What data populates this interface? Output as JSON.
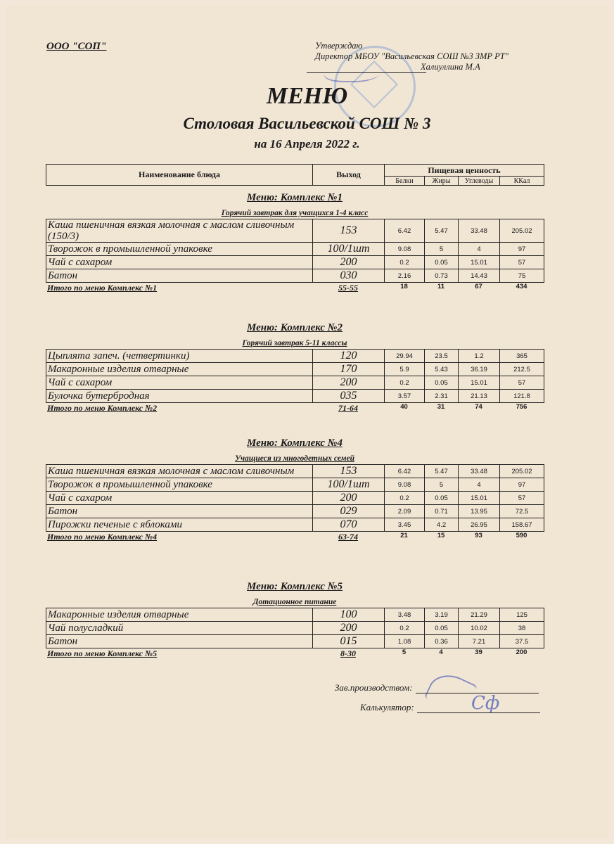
{
  "header": {
    "org": "ООО \"СОП\"",
    "approve_label": "Утверждаю",
    "approve_position": "Директор МБОУ \"Васильевская СОШ  №3 ЗМР РТ\"",
    "approve_name": "Халиуллина М.А",
    "title": "МЕНЮ",
    "subtitle": "Столовая Васильевской  СОШ  № 3",
    "date": "на 16 Апреля 2022 г."
  },
  "table_header": {
    "name": "Наименование блюда",
    "yield": "Выход",
    "nutrition": "Пищевая ценность",
    "cols": [
      "Белки",
      "Жиры",
      "Углеводы",
      "ККал"
    ]
  },
  "sections": [
    {
      "title": "Меню: Комплекс №1",
      "subtitle": "Горячий завтрак для учащихся 1-4 класс",
      "rows": [
        {
          "name": "Каша пшеничная вязкая молочная с маслом сливочным (150/3)",
          "yield": "153",
          "values": [
            "6.42",
            "5.47",
            "33.48",
            "205.02"
          ]
        },
        {
          "name": "Творожок в промышленной упаковке",
          "yield": "100/1шт",
          "values": [
            "9.08",
            "5",
            "4",
            "97"
          ]
        },
        {
          "name": "Чай с сахаром",
          "yield": "200",
          "values": [
            "0.2",
            "0.05",
            "15.01",
            "57"
          ]
        },
        {
          "name": "Батон",
          "yield": "030",
          "values": [
            "2.16",
            "0.73",
            "14.43",
            "75"
          ]
        }
      ],
      "total": {
        "label": "Итого по меню Комплекс №1",
        "price": "55-55",
        "values": [
          "18",
          "11",
          "67",
          "434"
        ]
      }
    },
    {
      "title": "Меню: Комплекс №2",
      "subtitle": "Горячий завтрак 5-11 классы",
      "rows": [
        {
          "name": "Цыплята запеч.  (четвертинки)",
          "yield": "120",
          "values": [
            "29.94",
            "23.5",
            "1.2",
            "365"
          ]
        },
        {
          "name": "Макаронные изделия отварные",
          "yield": "170",
          "values": [
            "5.9",
            "5.43",
            "36.19",
            "212.5"
          ]
        },
        {
          "name": "Чай с сахаром",
          "yield": "200",
          "values": [
            "0.2",
            "0.05",
            "15.01",
            "57"
          ]
        },
        {
          "name": "Булочка бутербродная",
          "yield": "035",
          "values": [
            "3.57",
            "2.31",
            "21.13",
            "121.8"
          ]
        }
      ],
      "total": {
        "label": "Итого по меню Комплекс №2",
        "price": "71-64",
        "values": [
          "40",
          "31",
          "74",
          "756"
        ]
      }
    },
    {
      "title": "Меню: Комплекс №4",
      "subtitle": "Учащиеся из многодетных семей",
      "rows": [
        {
          "name": "Каша пшеничная вязкая молочная с маслом сливочным",
          "yield": "153",
          "values": [
            "6.42",
            "5.47",
            "33.48",
            "205.02"
          ]
        },
        {
          "name": "Творожок в промышленной упаковке",
          "yield": "100/1шт",
          "values": [
            "9.08",
            "5",
            "4",
            "97"
          ]
        },
        {
          "name": "Чай с сахаром",
          "yield": "200",
          "values": [
            "0.2",
            "0.05",
            "15.01",
            "57"
          ]
        },
        {
          "name": "Батон",
          "yield": "029",
          "values": [
            "2.09",
            "0.71",
            "13.95",
            "72.5"
          ]
        },
        {
          "name": "Пирожки печеные с яблоками",
          "yield": "070",
          "values": [
            "3.45",
            "4.2",
            "26.95",
            "158.67"
          ]
        }
      ],
      "total": {
        "label": "Итого по меню Комплекс №4",
        "price": "63-74",
        "values": [
          "21",
          "15",
          "93",
          "590"
        ]
      }
    },
    {
      "title": "Меню: Комплекс №5",
      "subtitle": "Дотационное питание",
      "rows": [
        {
          "name": "Макаронные изделия отварные",
          "yield": "100",
          "values": [
            "3.48",
            "3.19",
            "21.29",
            "125"
          ]
        },
        {
          "name": "Чай полусладкий",
          "yield": "200",
          "values": [
            "0.2",
            "0.05",
            "10.02",
            "38"
          ]
        },
        {
          "name": "Батон",
          "yield": "015",
          "values": [
            "1.08",
            "0.36",
            "7.21",
            "37.5"
          ]
        }
      ],
      "total": {
        "label": "Итого по меню Комплекс №5",
        "price": "8-30",
        "values": [
          "5",
          "4",
          "39",
          "200"
        ]
      }
    }
  ],
  "signatures": {
    "production_label": "Зав.производством:",
    "calculator_label": "Калькулятор:"
  }
}
